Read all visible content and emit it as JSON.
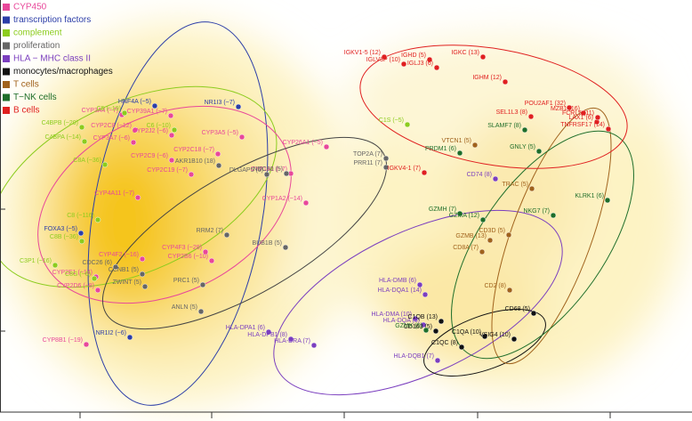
{
  "chart_data": {
    "type": "scatter",
    "xlim": [
      0,
      778
    ],
    "ylim": [
      0,
      463
    ],
    "xticks": [
      90,
      238,
      387,
      537,
      686
    ],
    "yticks": [
      91,
      228
    ],
    "legend": "top-left",
    "series": [
      {
        "name": "CYP450",
        "color": "#e8489a",
        "labels": [
          "CYP3A4 (~7)",
          "CYP2C8 (~12)",
          "CYP3A7 (~6)",
          "CYP39A1 (~7)",
          "CYP2J2 (~6)",
          "CYP2C9 (~6)",
          "CYP2C19 (~7)",
          "CYP2C18 (~7)",
          "CYP3A5 (~5)",
          "CYP4A11 (~7)",
          "CYP4F3 (~28)",
          "CYP4F2 (~16)",
          "CYP2B6 (~10)",
          "CYP2E1 (~14)",
          "CYP2D6 (~8)",
          "CYP8B1 (~19)",
          "CYP26A1 (~5)",
          "CYP1A1 (~7)",
          "CYP1A2 (~14)"
        ],
        "x": [
          137,
          152,
          150,
          192,
          193,
          193,
          215,
          245,
          272,
          155,
          231,
          160,
          238,
          108,
          110,
          97,
          367,
          327,
          344
        ],
        "values": [
          334,
          317,
          303,
          333,
          311,
          283,
          267,
          290,
          309,
          241,
          180,
          172,
          170,
          152,
          137,
          76,
          298,
          268,
          235
        ]
      },
      {
        "name": "transcription factors",
        "color": "#2c3ea8",
        "labels": [
          "HNF4A (~5)",
          "NR1I3 (~7)",
          "NR1I2 (~6)",
          "FOXA3 (~5)"
        ],
        "x": [
          174,
          268,
          146,
          91
        ],
        "values": [
          344,
          343,
          84,
          201
        ]
      },
      {
        "name": "complement",
        "color": "#8ccc1e",
        "labels": [
          "C5 (~19)",
          "C4BPB (~20)",
          "C4BPA (~14)",
          "C6 (~10)",
          "C8A (~36)",
          "C8 (~116)",
          "C8B (~36)",
          "C3P1 (~16)",
          "C8G (~6)",
          "C1S (~5)"
        ],
        "x": [
          140,
          92,
          95,
          196,
          118,
          110,
          92,
          62,
          106,
          458
        ],
        "values": [
          336,
          320,
          304,
          317,
          278,
          216,
          192,
          165,
          150,
          323
        ]
      },
      {
        "name": "proliferation",
        "color": "#666666",
        "labels": [
          "AKR1B10 (18)",
          "DLGAP5 (6)",
          "NDC80 (5)",
          "TOP2A (7)",
          "PRR11 (7)",
          "RRM2 (7)",
          "CDC26 (6)",
          "CCNB1 (5)",
          "ZWINT (5)",
          "PRC1 (5)",
          "ANLN (5)",
          "BUB1B (5)"
        ],
        "x": [
          246,
          300,
          322,
          434,
          434,
          255,
          130,
          160,
          163,
          228,
          226,
          321
        ],
        "values": [
          277,
          267,
          268,
          285,
          275,
          199,
          163,
          155,
          141,
          143,
          113,
          185
        ]
      },
      {
        "name": "HLA − MHC class II",
        "color": "#7b3fbf",
        "labels": [
          "CD74 (8)",
          "HLA-DMB (6)",
          "HLA-DQA1 (14)",
          "HLA-DMA (10)",
          "HLA-DQA (8)",
          "HLA-DPA1 (6)",
          "HLA-DPB1 (8)",
          "HLA-DRA (7)",
          "HLA-DQB1 (7)"
        ],
        "x": [
          557,
          472,
          478,
          467,
          476,
          302,
          327,
          353,
          492
        ],
        "values": [
          262,
          143,
          132,
          105,
          98,
          90,
          82,
          75,
          58
        ]
      },
      {
        "name": "monocytes/macrophages",
        "color": "#111111",
        "labels": [
          "C1QB (13)",
          "CD163 (5)",
          "C1QA (10)",
          "C1QC (8)",
          "CD68 (5)",
          "VSIG4 (10)"
        ],
        "x": [
          496,
          490,
          545,
          519,
          600,
          578
        ],
        "values": [
          102,
          91,
          85,
          73,
          111,
          82
        ]
      },
      {
        "name": "T cells",
        "color": "#a0621c",
        "labels": [
          "TRAC (5)",
          "CD3D (5)",
          "CD8A (7)",
          "GZMB (13)",
          "CD2 (8)",
          "VTCN1 (5)"
        ],
        "x": [
          598,
          572,
          542,
          551,
          573,
          534
        ],
        "values": [
          251,
          199,
          180,
          193,
          137,
          300
        ]
      },
      {
        "name": "T−NK cells",
        "color": "#1e6e2a",
        "labels": [
          "PRDM1 (6)",
          "GNLY (5)",
          "GZMH (7)",
          "GZMA (12)",
          "NKG7 (7)",
          "KLRK1 (6)",
          "SLAMF7 (8)",
          "GZMK (5)"
        ],
        "x": [
          517,
          606,
          517,
          543,
          622,
          683,
          590,
          479
        ],
        "values": [
          291,
          293,
          223,
          216,
          221,
          238,
          317,
          92
        ]
      },
      {
        "name": "B cells",
        "color": "#e02020",
        "labels": [
          "IGKV1-5 (12)",
          "IGHD (5)",
          "IGKC (13)",
          "IGLV3P (10)",
          "IGLJ3 (6)",
          "IGHM (12)",
          "POU2AF1 (32)",
          "MZB1 (16)",
          "SEL1L3 (8)",
          "LAX1 (6)",
          "FCRL5 (11)",
          "TNFRSF17 (14)",
          "IGKV4-1 (7)"
        ],
        "x": [
          432,
          483,
          543,
          454,
          491,
          568,
          640,
          656,
          597,
          671,
          672,
          684,
          477
        ],
        "values": [
          399,
          396,
          399,
          391,
          387,
          371,
          342,
          336,
          332,
          326,
          331,
          318,
          269
        ]
      }
    ]
  }
}
